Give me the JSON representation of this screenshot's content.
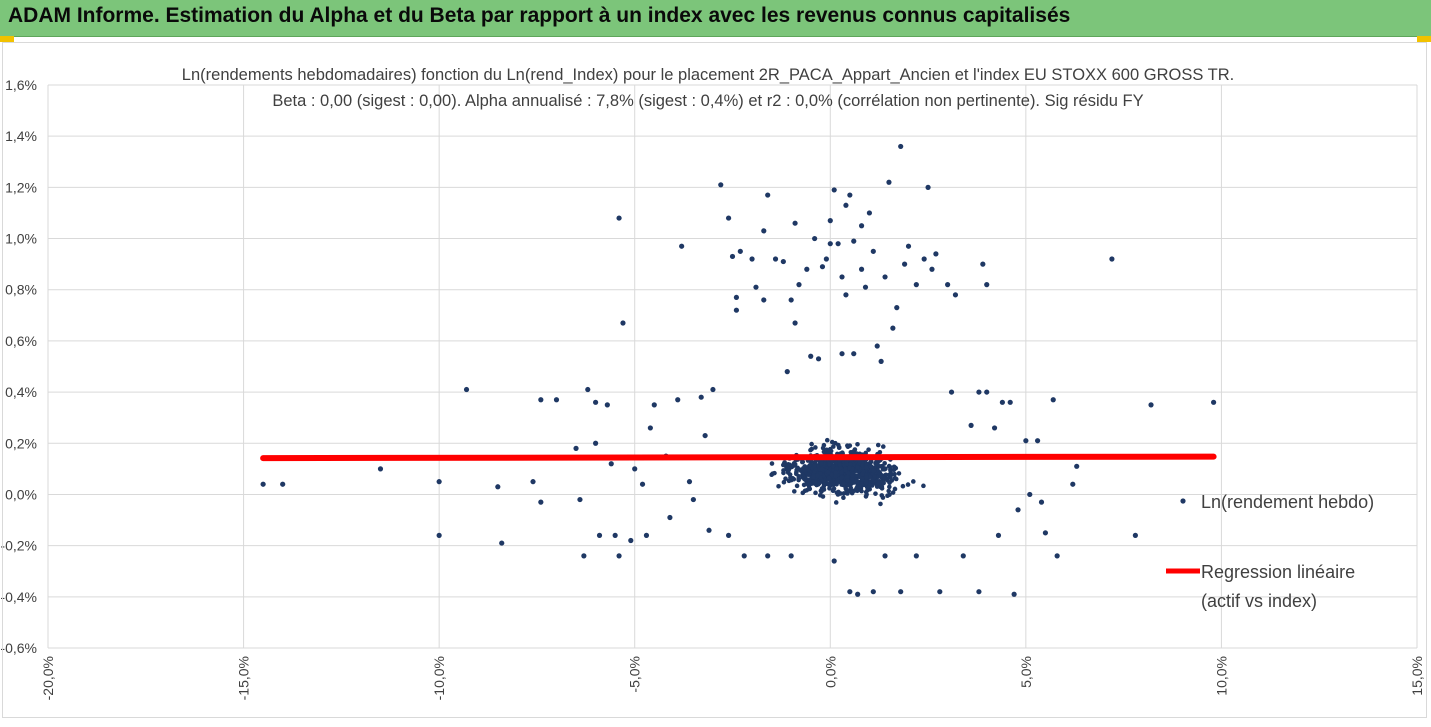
{
  "banner": {
    "title": "ADAM Informe. Estimation du Alpha et du Beta par rapport à un index avec les revenus connus capitalisés"
  },
  "colors": {
    "banner_bg": "#7cc57a",
    "corner_accent": "#f2c200",
    "points": "#1f3864",
    "regression": "#ff0000",
    "grid": "#d9d9d9"
  },
  "chart_data": {
    "type": "scatter",
    "title_line1": "Ln(rendements hebdomadaires) fonction du Ln(rend_Index) pour le placement 2R_PACA_Appart_Ancien et l'index EU STOXX 600 GROSS TR.",
    "title_line2": "Beta : 0,00 (sigest : 0,00). Alpha annualisé : 7,8% (sigest : 0,4%) et r2 : 0,0% (corrélation non pertinente). Sig résidu FY",
    "xlim": [
      -0.2,
      0.15
    ],
    "ylim": [
      -0.006,
      0.016
    ],
    "x_ticks": [
      -0.2,
      -0.15,
      -0.1,
      -0.05,
      0.0,
      0.05,
      0.1,
      0.15
    ],
    "x_tick_labels": [
      "-20,0%",
      "-15,0%",
      "-10,0%",
      "-5,0%",
      "0,0%",
      "5,0%",
      "10,0%",
      "15,0%"
    ],
    "y_ticks": [
      -0.006,
      -0.004,
      -0.002,
      0.0,
      0.002,
      0.004,
      0.006,
      0.008,
      0.01,
      0.012,
      0.014,
      0.016
    ],
    "y_tick_labels": [
      "-0,6%",
      "-0,4%",
      "-0,2%",
      "0,0%",
      "0,2%",
      "0,4%",
      "0,6%",
      "0,8%",
      "1,0%",
      "1,2%",
      "1,4%",
      "1,6%"
    ],
    "grid": true,
    "legend_position": "right",
    "series": [
      {
        "name": "Ln(rendement hebdo)",
        "kind": "scatter",
        "points": [
          [
            -0.145,
            0.0004
          ],
          [
            -0.14,
            0.0004
          ],
          [
            -0.115,
            0.001
          ],
          [
            -0.1,
            0.0005
          ],
          [
            -0.1,
            -0.0016
          ],
          [
            -0.093,
            0.0041
          ],
          [
            -0.085,
            0.0003
          ],
          [
            -0.084,
            -0.0019
          ],
          [
            -0.076,
            0.0005
          ],
          [
            -0.074,
            -0.0003
          ],
          [
            -0.074,
            0.0037
          ],
          [
            -0.07,
            0.0037
          ],
          [
            -0.065,
            0.0018
          ],
          [
            -0.064,
            -0.0002
          ],
          [
            -0.063,
            -0.0024
          ],
          [
            -0.062,
            0.0041
          ],
          [
            -0.06,
            0.0036
          ],
          [
            -0.06,
            0.002
          ],
          [
            -0.059,
            -0.0016
          ],
          [
            -0.057,
            0.0035
          ],
          [
            -0.056,
            0.0012
          ],
          [
            -0.055,
            -0.0016
          ],
          [
            -0.054,
            0.0108
          ],
          [
            -0.054,
            -0.0024
          ],
          [
            -0.053,
            0.0067
          ],
          [
            -0.051,
            -0.0018
          ],
          [
            -0.05,
            0.001
          ],
          [
            -0.048,
            0.0004
          ],
          [
            -0.047,
            -0.0016
          ],
          [
            -0.046,
            0.0026
          ],
          [
            -0.045,
            0.0035
          ],
          [
            -0.042,
            0.0015
          ],
          [
            -0.041,
            -0.0009
          ],
          [
            -0.039,
            0.0037
          ],
          [
            -0.038,
            0.0097
          ],
          [
            -0.036,
            0.0005
          ],
          [
            -0.035,
            -0.0002
          ],
          [
            -0.033,
            0.0038
          ],
          [
            -0.032,
            0.0023
          ],
          [
            -0.031,
            -0.0014
          ],
          [
            -0.03,
            0.0041
          ],
          [
            -0.028,
            0.0121
          ],
          [
            -0.026,
            0.0108
          ],
          [
            -0.026,
            -0.0016
          ],
          [
            -0.025,
            0.0093
          ],
          [
            -0.024,
            0.0077
          ],
          [
            -0.024,
            0.0072
          ],
          [
            -0.023,
            0.0095
          ],
          [
            -0.022,
            -0.0024
          ],
          [
            -0.02,
            0.0092
          ],
          [
            -0.019,
            0.0081
          ],
          [
            -0.017,
            0.0103
          ],
          [
            -0.017,
            0.0076
          ],
          [
            -0.016,
            0.0117
          ],
          [
            -0.016,
            -0.0024
          ],
          [
            -0.014,
            0.0092
          ],
          [
            -0.012,
            0.0091
          ],
          [
            -0.011,
            0.0048
          ],
          [
            -0.01,
            0.0076
          ],
          [
            -0.01,
            -0.0024
          ],
          [
            -0.009,
            0.0067
          ],
          [
            -0.009,
            0.0106
          ],
          [
            -0.008,
            0.0082
          ],
          [
            -0.006,
            0.0088
          ],
          [
            -0.005,
            0.0054
          ],
          [
            -0.004,
            0.01
          ],
          [
            -0.003,
            0.0053
          ],
          [
            -0.002,
            0.0089
          ],
          [
            -0.001,
            0.0092
          ],
          [
            0.0,
            0.0107
          ],
          [
            0.0,
            0.0098
          ],
          [
            0.001,
            0.0119
          ],
          [
            0.001,
            -0.0026
          ],
          [
            0.002,
            0.0098
          ],
          [
            0.003,
            0.0085
          ],
          [
            0.003,
            0.0055
          ],
          [
            0.004,
            0.0113
          ],
          [
            0.004,
            0.0078
          ],
          [
            0.005,
            0.0117
          ],
          [
            0.005,
            -0.0038
          ],
          [
            0.006,
            0.0099
          ],
          [
            0.006,
            0.0055
          ],
          [
            0.007,
            -0.0039
          ],
          [
            0.008,
            0.0088
          ],
          [
            0.008,
            0.0105
          ],
          [
            0.009,
            0.0081
          ],
          [
            0.01,
            0.011
          ],
          [
            0.011,
            0.0095
          ],
          [
            0.011,
            -0.0038
          ],
          [
            0.012,
            0.0058
          ],
          [
            0.013,
            0.0052
          ],
          [
            0.014,
            0.0085
          ],
          [
            0.014,
            -0.0024
          ],
          [
            0.015,
            0.0122
          ],
          [
            0.016,
            0.0065
          ],
          [
            0.017,
            0.0073
          ],
          [
            0.018,
            0.0136
          ],
          [
            0.018,
            -0.0038
          ],
          [
            0.019,
            0.009
          ],
          [
            0.02,
            0.0097
          ],
          [
            0.022,
            0.0082
          ],
          [
            0.022,
            -0.0024
          ],
          [
            0.024,
            0.0092
          ],
          [
            0.025,
            0.012
          ],
          [
            0.026,
            0.0088
          ],
          [
            0.027,
            0.0094
          ],
          [
            0.028,
            -0.0038
          ],
          [
            0.03,
            0.0082
          ],
          [
            0.031,
            0.004
          ],
          [
            0.032,
            0.0078
          ],
          [
            0.034,
            -0.0024
          ],
          [
            0.036,
            0.0027
          ],
          [
            0.038,
            0.004
          ],
          [
            0.038,
            -0.0038
          ],
          [
            0.039,
            0.009
          ],
          [
            0.04,
            0.0082
          ],
          [
            0.04,
            0.004
          ],
          [
            0.042,
            0.0026
          ],
          [
            0.043,
            -0.0016
          ],
          [
            0.044,
            0.0036
          ],
          [
            0.046,
            0.0036
          ],
          [
            0.047,
            -0.0039
          ],
          [
            0.048,
            -0.0006
          ],
          [
            0.05,
            0.0021
          ],
          [
            0.051,
            0.0
          ],
          [
            0.053,
            0.0021
          ],
          [
            0.054,
            -0.0003
          ],
          [
            0.055,
            -0.0015
          ],
          [
            0.057,
            0.0037
          ],
          [
            0.058,
            -0.0024
          ],
          [
            0.062,
            0.0004
          ],
          [
            0.063,
            0.0011
          ],
          [
            0.072,
            0.0092
          ],
          [
            0.078,
            -0.0016
          ],
          [
            0.082,
            0.0035
          ],
          [
            0.098,
            0.0036
          ]
        ]
      },
      {
        "name": "Regression linéaire (actif vs index)",
        "kind": "line",
        "points": [
          [
            -0.145,
            0.00142
          ],
          [
            0.098,
            0.00148
          ]
        ]
      }
    ],
    "legend": [
      {
        "label": "Ln(rendement hebdo)",
        "marker": "point"
      },
      {
        "label_line1": "Regression linéaire",
        "label_line2": "(actif vs index)",
        "marker": "line"
      }
    ]
  }
}
